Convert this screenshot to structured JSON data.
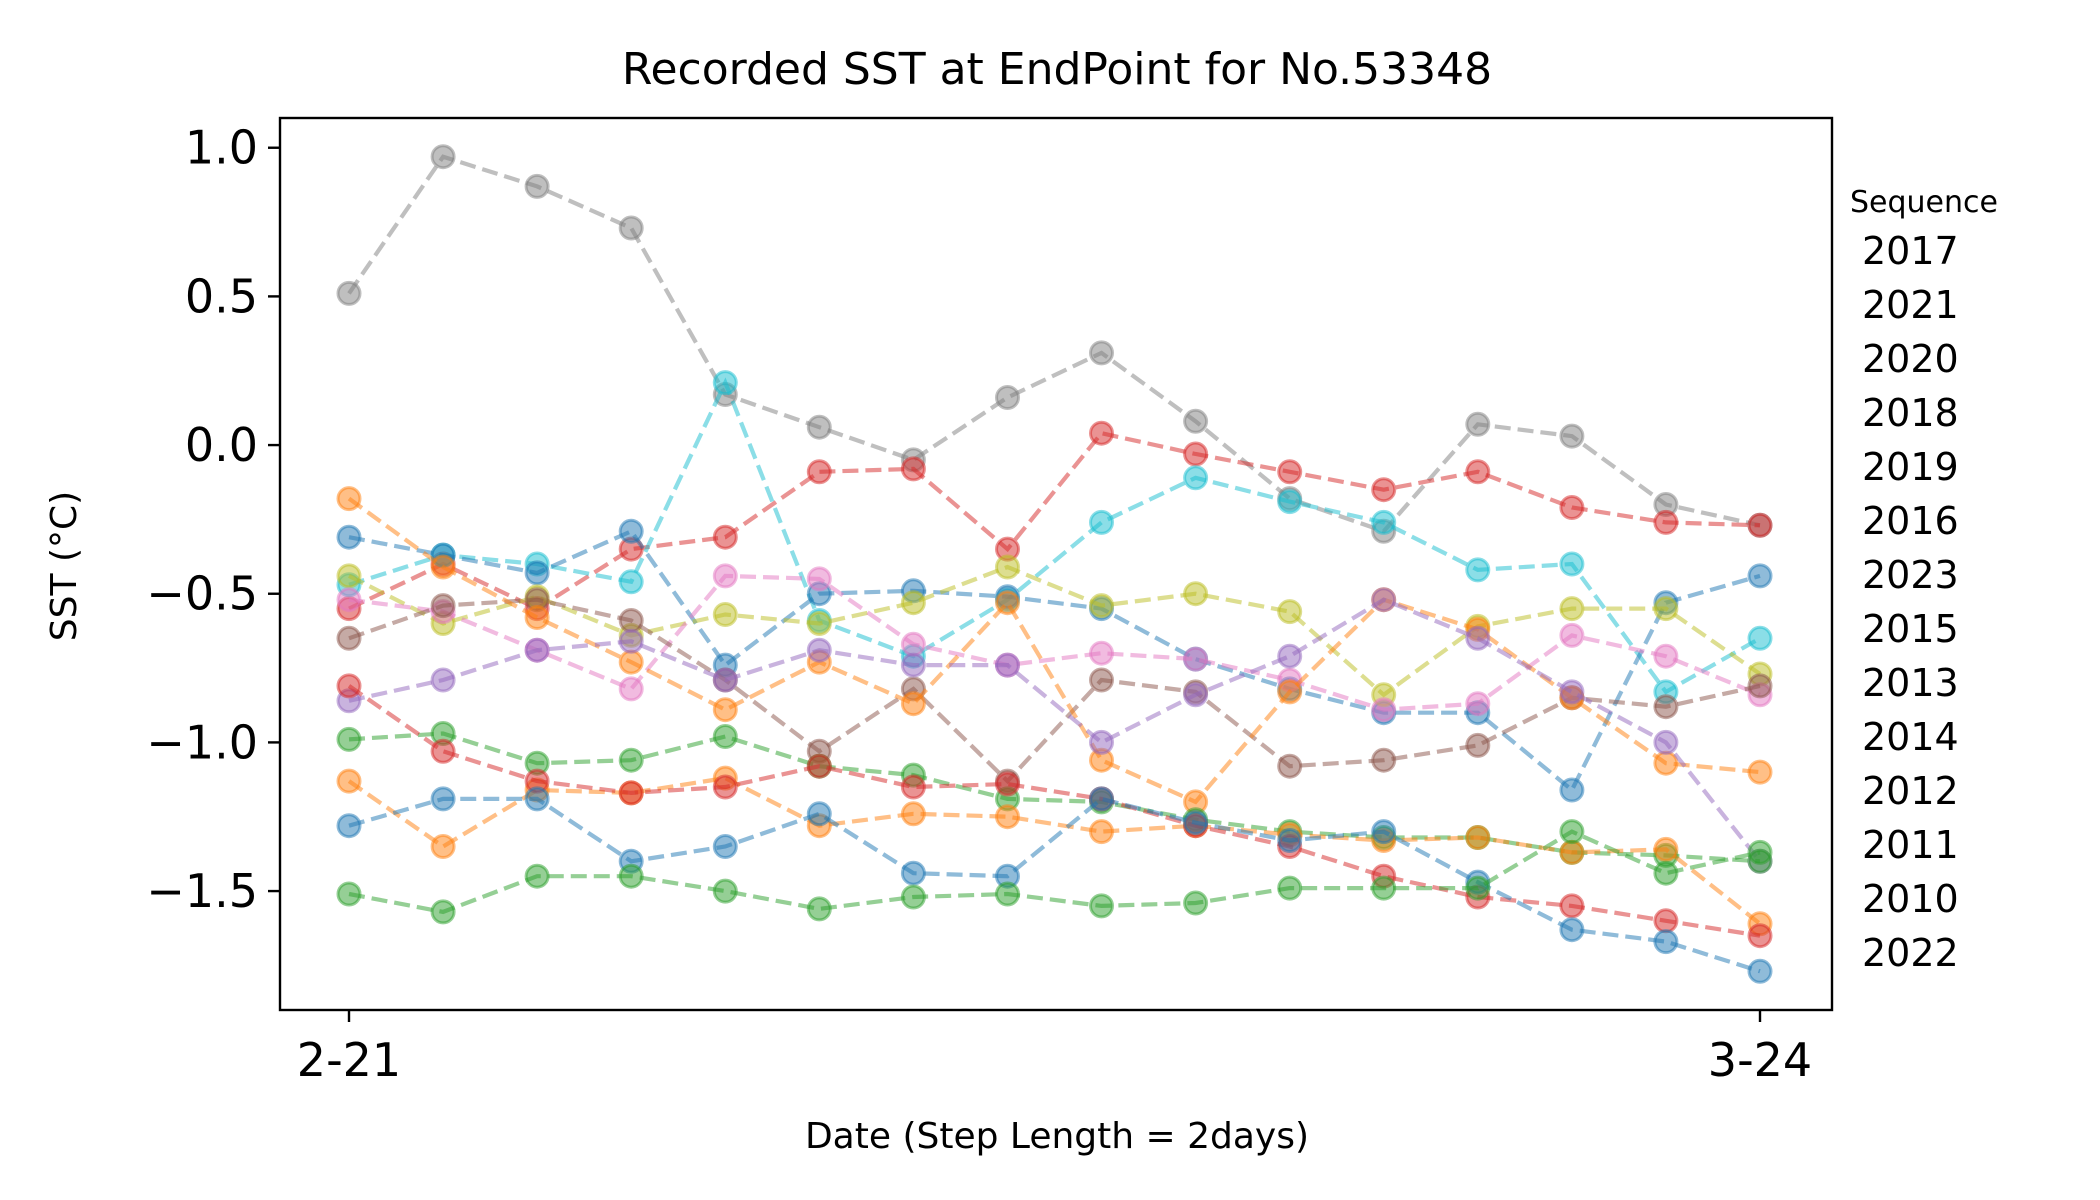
{
  "chart_data": {
    "type": "line",
    "title": "Recorded SST at EndPoint for No.53348",
    "xlabel": "Date (Step Length = 2days)",
    "ylabel": "SST (°C)",
    "x_tick_labels": [
      "2-21",
      "3-24"
    ],
    "y_ticks": [
      1.0,
      0.5,
      0.0,
      -0.5,
      -1.0,
      -1.5
    ],
    "y_tick_labels": [
      "1.0",
      "0.5",
      "0.0",
      "−0.5",
      "−1.0",
      "−1.5"
    ],
    "ylim": [
      -1.9,
      1.1
    ],
    "x": [
      0,
      1,
      2,
      3,
      4,
      5,
      6,
      7,
      8,
      9,
      10,
      11,
      12,
      13,
      14,
      15
    ],
    "legend_title": "Sequence",
    "legend_placement": "right, outside plot",
    "line_style": "dashed with circle markers",
    "series": [
      {
        "name": "2017",
        "color": "#7f7f7f",
        "values": [
          0.51,
          0.97,
          0.87,
          0.73,
          0.17,
          0.06,
          -0.05,
          0.16,
          0.31,
          0.08,
          -0.18,
          -0.29,
          0.07,
          0.03,
          -0.2,
          -0.27
        ]
      },
      {
        "name": "2021",
        "color": "#d62728",
        "values": [
          -0.55,
          -0.4,
          -0.55,
          -0.35,
          -0.31,
          -0.09,
          -0.08,
          -0.35,
          0.04,
          -0.03,
          -0.09,
          -0.15,
          -0.09,
          -0.21,
          -0.26,
          -0.27
        ]
      },
      {
        "name": "2020",
        "color": "#17becf",
        "values": [
          -0.47,
          -0.37,
          -0.4,
          -0.46,
          0.21,
          -0.59,
          -0.71,
          -0.52,
          -0.26,
          -0.11,
          -0.19,
          -0.26,
          -0.42,
          -0.4,
          -0.83,
          -0.65
        ]
      },
      {
        "name": "2018",
        "color": "#1f77b4",
        "values": [
          -0.31,
          -0.37,
          -0.43,
          -0.29,
          -0.74,
          -0.5,
          -0.49,
          -0.51,
          -0.55,
          -0.72,
          -0.82,
          -0.9,
          -0.9,
          -1.16,
          -0.53,
          -0.44
        ]
      },
      {
        "name": "2019",
        "color": "#bcbd22",
        "values": [
          -0.44,
          -0.6,
          -0.51,
          -0.64,
          -0.57,
          -0.6,
          -0.53,
          -0.41,
          -0.54,
          -0.5,
          -0.56,
          -0.84,
          -0.61,
          -0.55,
          -0.55,
          -0.77
        ]
      },
      {
        "name": "2016",
        "color": "#e377c2",
        "values": [
          -0.52,
          -0.56,
          -0.69,
          -0.82,
          -0.44,
          -0.45,
          -0.67,
          -0.74,
          -0.7,
          -0.72,
          -0.79,
          -0.89,
          -0.87,
          -0.64,
          -0.71,
          -0.84
        ]
      },
      {
        "name": "2023",
        "color": "#8c564b",
        "values": [
          -0.65,
          -0.54,
          -0.52,
          -0.59,
          -0.79,
          -1.03,
          -0.82,
          -1.13,
          -0.79,
          -0.83,
          -1.08,
          -1.06,
          -1.01,
          -0.85,
          -0.88,
          -0.81
        ]
      },
      {
        "name": "2015",
        "color": "#ff7f0e",
        "values": [
          -0.18,
          -0.41,
          -0.58,
          -0.73,
          -0.89,
          -0.73,
          -0.87,
          -0.53,
          -1.06,
          -1.2,
          -0.83,
          -0.52,
          -0.62,
          -0.85,
          -1.07,
          -1.1
        ]
      },
      {
        "name": "2013",
        "color": "#9467bd",
        "values": [
          -0.86,
          -0.79,
          -0.69,
          -0.66,
          -0.79,
          -0.69,
          -0.74,
          -0.74,
          -1.0,
          -0.84,
          -0.71,
          -0.52,
          -0.65,
          -0.83,
          -1.0,
          -1.4
        ]
      },
      {
        "name": "2014",
        "color": "#2ca02c",
        "values": [
          -0.99,
          -0.97,
          -1.07,
          -1.06,
          -0.98,
          -1.08,
          -1.11,
          -1.19,
          -1.2,
          -1.26,
          -1.3,
          -1.32,
          -1.32,
          -1.37,
          -1.38,
          -1.4
        ]
      },
      {
        "name": "2012",
        "color": "#ff7f0e",
        "values": [
          -1.13,
          -1.35,
          -1.16,
          -1.17,
          -1.12,
          -1.28,
          -1.24,
          -1.25,
          -1.3,
          -1.28,
          -1.31,
          -1.33,
          -1.32,
          -1.37,
          -1.36,
          -1.61
        ]
      },
      {
        "name": "2011",
        "color": "#d62728",
        "values": [
          -0.81,
          -1.03,
          -1.13,
          -1.17,
          -1.15,
          -1.08,
          -1.15,
          -1.14,
          -1.19,
          -1.28,
          -1.35,
          -1.45,
          -1.52,
          -1.55,
          -1.6,
          -1.65
        ]
      },
      {
        "name": "2010",
        "color": "#1f77b4",
        "values": [
          -1.28,
          -1.19,
          -1.19,
          -1.4,
          -1.35,
          -1.24,
          -1.44,
          -1.45,
          -1.19,
          -1.27,
          -1.33,
          -1.3,
          -1.47,
          -1.63,
          -1.67,
          -1.77
        ]
      },
      {
        "name": "2022",
        "color": "#2ca02c",
        "values": [
          -1.51,
          -1.57,
          -1.45,
          -1.45,
          -1.5,
          -1.56,
          -1.52,
          -1.51,
          -1.55,
          -1.54,
          -1.49,
          -1.49,
          -1.49,
          -1.3,
          -1.44,
          -1.37
        ]
      }
    ]
  }
}
